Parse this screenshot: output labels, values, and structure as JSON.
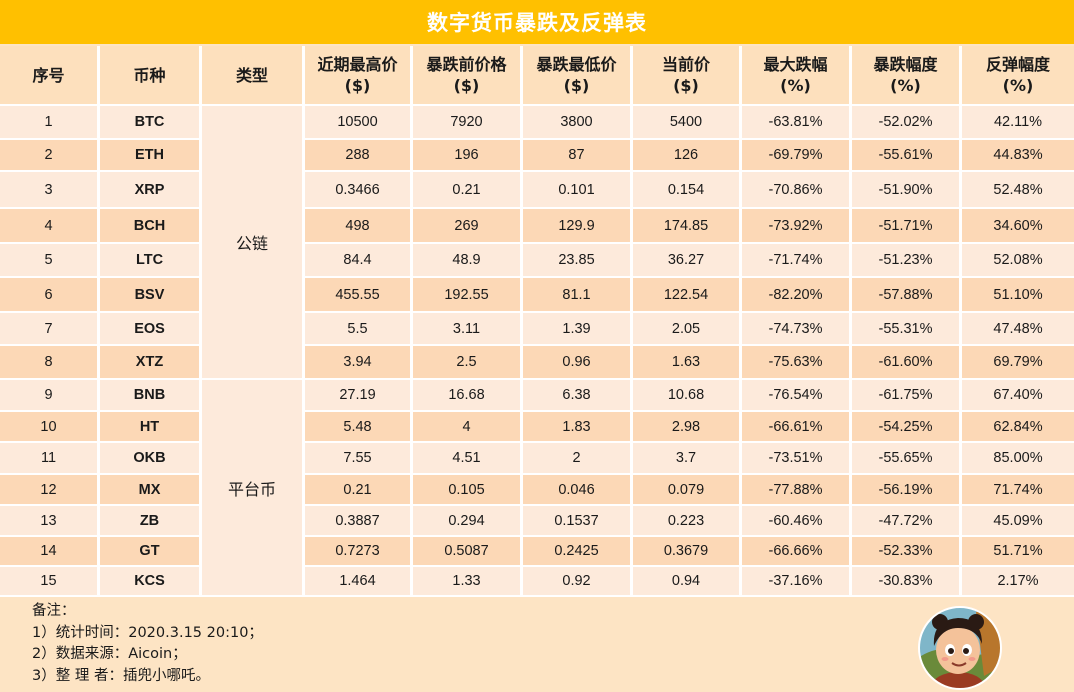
{
  "title": "数字货币暴跌及反弹表",
  "columns": [
    {
      "line1": "序号",
      "line2": ""
    },
    {
      "line1": "币种",
      "line2": ""
    },
    {
      "line1": "类型",
      "line2": ""
    },
    {
      "line1": "近期最高价",
      "line2": "($)"
    },
    {
      "line1": "暴跌前价格",
      "line2": "($)"
    },
    {
      "line1": "暴跌最低价",
      "line2": "($)"
    },
    {
      "line1": "当前价",
      "line2": "($)"
    },
    {
      "line1": "最大跌幅",
      "line2": "(%)"
    },
    {
      "line1": "暴跌幅度",
      "line2": "(%)"
    },
    {
      "line1": "反弹幅度",
      "line2": "(%)"
    }
  ],
  "categories": [
    {
      "label": "公链",
      "rows": 8
    },
    {
      "label": "平台币",
      "rows": 7
    }
  ],
  "rows": [
    [
      "1",
      "BTC",
      "10500",
      "7920",
      "3800",
      "5400",
      "-63.81%",
      "-52.02%",
      "42.11%"
    ],
    [
      "2",
      "ETH",
      "288",
      "196",
      "87",
      "126",
      "-69.79%",
      "-55.61%",
      "44.83%"
    ],
    [
      "3",
      "XRP",
      "0.3466",
      "0.21",
      "0.101",
      "0.154",
      "-70.86%",
      "-51.90%",
      "52.48%"
    ],
    [
      "4",
      "BCH",
      "498",
      "269",
      "129.9",
      "174.85",
      "-73.92%",
      "-51.71%",
      "34.60%"
    ],
    [
      "5",
      "LTC",
      "84.4",
      "48.9",
      "23.85",
      "36.27",
      "-71.74%",
      "-51.23%",
      "52.08%"
    ],
    [
      "6",
      "BSV",
      "455.55",
      "192.55",
      "81.1",
      "122.54",
      "-82.20%",
      "-57.88%",
      "51.10%"
    ],
    [
      "7",
      "EOS",
      "5.5",
      "3.11",
      "1.39",
      "2.05",
      "-74.73%",
      "-55.31%",
      "47.48%"
    ],
    [
      "8",
      "XTZ",
      "3.94",
      "2.5",
      "0.96",
      "1.63",
      "-75.63%",
      "-61.60%",
      "69.79%"
    ],
    [
      "9",
      "BNB",
      "27.19",
      "16.68",
      "6.38",
      "10.68",
      "-76.54%",
      "-61.75%",
      "67.40%"
    ],
    [
      "10",
      "HT",
      "5.48",
      "4",
      "1.83",
      "2.98",
      "-66.61%",
      "-54.25%",
      "62.84%"
    ],
    [
      "11",
      "OKB",
      "7.55",
      "4.51",
      "2",
      "3.7",
      "-73.51%",
      "-55.65%",
      "85.00%"
    ],
    [
      "12",
      "MX",
      "0.21",
      "0.105",
      "0.046",
      "0.079",
      "-77.88%",
      "-56.19%",
      "71.74%"
    ],
    [
      "13",
      "ZB",
      "0.3887",
      "0.294",
      "0.1537",
      "0.223",
      "-60.46%",
      "-47.72%",
      "45.09%"
    ],
    [
      "14",
      "GT",
      "0.7273",
      "0.5087",
      "0.2425",
      "0.3679",
      "-66.66%",
      "-52.33%",
      "51.71%"
    ],
    [
      "15",
      "KCS",
      "1.464",
      "1.33",
      "0.92",
      "0.94",
      "-37.16%",
      "-30.83%",
      "2.17%"
    ]
  ],
  "notes": {
    "heading": "备注：",
    "items": [
      "1）统计时间：2020.3.15 20:10；",
      "2）数据来源：Aicoin；",
      "3）整 理 者：插兜小哪吒。"
    ]
  },
  "colors": {
    "title_bg": "#ffc000",
    "header_bg": "#fde0bd",
    "row_light": "#fdeadb",
    "row_dark": "#fcd8b6",
    "page_bg": "#fde4c4"
  },
  "avatar": {
    "icon": "cartoon-avatar-icon"
  }
}
